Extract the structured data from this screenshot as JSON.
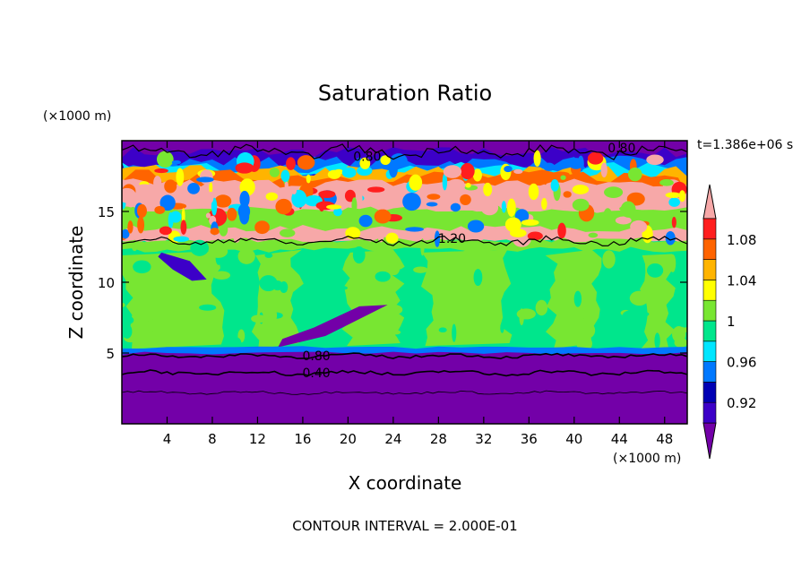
{
  "chart_data": {
    "type": "heatmap",
    "title": "Saturation Ratio",
    "xlabel": "X coordinate",
    "ylabel": "Z coordinate",
    "x_unit": "(×1000 m)",
    "z_unit": "(×1000 m)",
    "time_label": "t=1.386e+06 s",
    "footer": "CONTOUR INTERVAL = 2.000E-01",
    "xlim": [
      0,
      50
    ],
    "ylim": [
      0,
      20
    ],
    "x_ticks": [
      "4",
      "8",
      "12",
      "16",
      "20",
      "24",
      "28",
      "32",
      "36",
      "40",
      "44",
      "48"
    ],
    "x_tick_values": [
      4,
      8,
      12,
      16,
      20,
      24,
      28,
      32,
      36,
      40,
      44,
      48
    ],
    "y_ticks": [
      "5",
      "10",
      "15"
    ],
    "y_tick_values": [
      5,
      10,
      15
    ],
    "contour_interval": 0.2,
    "contour_labels": [
      {
        "text": "0.80",
        "x": 21.7,
        "z": 18.9
      },
      {
        "text": "0.80",
        "x": 44.2,
        "z": 19.5
      },
      {
        "text": "1.20",
        "x": 29.2,
        "z": 13.1
      },
      {
        "text": "0.80",
        "x": 17.2,
        "z": 4.8
      },
      {
        "text": "0.40",
        "x": 17.2,
        "z": 3.6
      }
    ],
    "colorbar": {
      "levels": [
        "0.92",
        "0.96",
        "1",
        "1.04",
        "1.08"
      ],
      "level_values": [
        0.92,
        0.96,
        1.0,
        1.04,
        1.08
      ],
      "colors": [
        "#7300a8",
        "#3c00c8",
        "#0000b4",
        "#0078ff",
        "#00e6ff",
        "#00e68c",
        "#78e632",
        "#ffff00",
        "#ffb400",
        "#ff6400",
        "#ff1e1e",
        "#f7a8a8"
      ]
    },
    "regions": [
      {
        "name": "upper dry layer",
        "z_range": [
          18.5,
          20
        ],
        "value_range": "< 0.90",
        "color": "#7300a8"
      },
      {
        "name": "supersaturated band",
        "z_range": [
          15,
          18.5
        ],
        "value_range": "0.96 – >1.10",
        "color": "#f7a8a8"
      },
      {
        "name": "ice-cloud layer",
        "z_range": [
          13,
          15
        ],
        "value_range": "1.0 – 1.08",
        "color": "#78e632"
      },
      {
        "name": "mid layer",
        "z_range": [
          5.2,
          13
        ],
        "value_range": "0.98 – 1.02",
        "color": "#00e68c"
      },
      {
        "name": "lower dry layer",
        "z_range": [
          0,
          5.2
        ],
        "value_range": "< 0.90",
        "color": "#7300a8"
      }
    ]
  }
}
